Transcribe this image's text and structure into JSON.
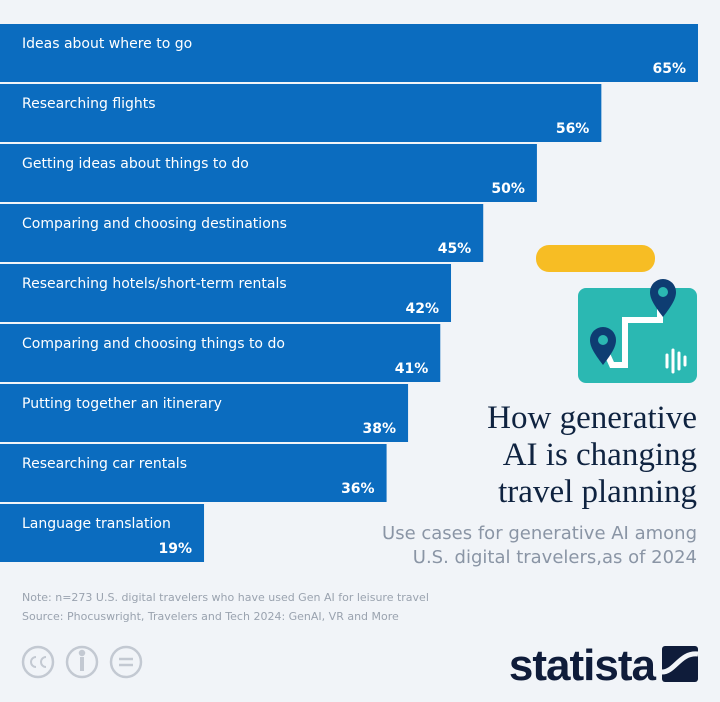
{
  "chart_data": {
    "type": "bar",
    "orientation": "horizontal",
    "title": [
      "How generative",
      "AI is changing",
      "travel planning"
    ],
    "subtitle": [
      "Use cases for generative AI among",
      "U.S. digital travelers,as of 2024"
    ],
    "categories": [
      "Ideas about where to go",
      "Researching flights",
      "Getting ideas about things to do",
      "Comparing and choosing destinations",
      "Researching hotels/short-term rentals",
      "Comparing and choosing things to do",
      "Putting together an itinerary",
      "Researching car rentals",
      "Language translation"
    ],
    "values": [
      65,
      56,
      50,
      45,
      42,
      41,
      38,
      36,
      19
    ],
    "value_labels": [
      "65%",
      "56%",
      "50%",
      "45%",
      "42%",
      "41%",
      "38%",
      "36%",
      "19%"
    ],
    "color": "#0b6cbf",
    "note": "Note: n=273 U.S. digital travelers who have used Gen AI for leisure travel",
    "source": "Source: Phocuswright, Travelers and Tech 2024: GenAI, VR and More",
    "brand": "statista"
  }
}
